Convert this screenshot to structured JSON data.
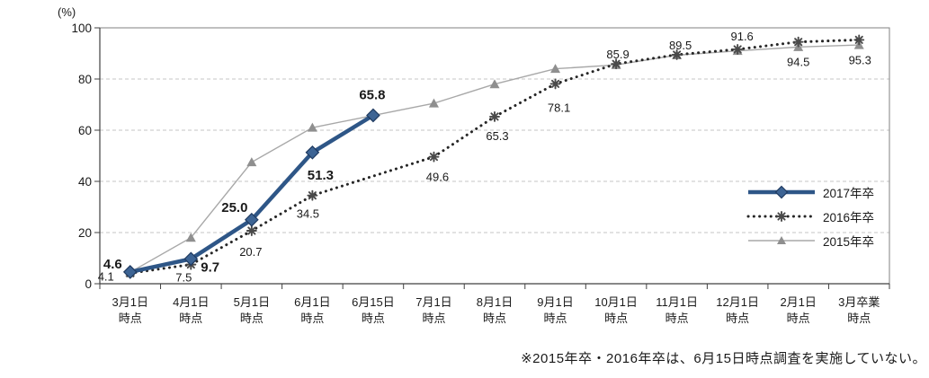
{
  "chart_data": {
    "type": "line",
    "unit_label": "(%)",
    "note": "※2015年卒・2016年卒は、6月15日時点調査を実施していない。",
    "categories": [
      "3月1日時点",
      "4月1日時点",
      "5月1日時点",
      "6月1日時点",
      "6月15日時点",
      "7月1日時点",
      "8月1日時点",
      "9月1日時点",
      "10月1日時点",
      "11月1日時点",
      "12月1日時点",
      "2月1日時点",
      "3月卒業時点"
    ],
    "y_axis": {
      "min": 0,
      "max": 100,
      "step": 20,
      "ticks": [
        "0",
        "20",
        "40",
        "60",
        "80",
        "100"
      ]
    },
    "grid": true,
    "legend_position": "inside-right",
    "series": [
      {
        "name": "2017年卒",
        "line_style": "solid-thick",
        "marker": "diamond",
        "color": "#2e5687",
        "marker_fill": "#3d6494",
        "marker_stroke": "#1f3a60",
        "values": [
          4.6,
          9.7,
          25.0,
          51.3,
          65.8,
          null,
          null,
          null,
          null,
          null,
          null,
          null,
          null
        ],
        "point_labels": [
          "4.6",
          "9.7",
          "25.0",
          "51.3",
          "65.8",
          null,
          null,
          null,
          null,
          null,
          null,
          null,
          null
        ],
        "labels_shown": true,
        "label_weight": "bold"
      },
      {
        "name": "2016年卒",
        "line_style": "dotted",
        "marker": "asterisk",
        "color": "#262626",
        "marker_fill": "#4a4a4a",
        "values": [
          4.1,
          7.5,
          20.7,
          34.5,
          null,
          49.6,
          65.3,
          78.1,
          85.9,
          89.5,
          91.6,
          94.5,
          95.3
        ],
        "point_labels": [
          "4.1",
          "7.5",
          "20.7",
          "34.5",
          null,
          "49.6",
          "65.3",
          "78.1",
          "85.9",
          "89.5",
          "91.6",
          "94.5",
          "95.3"
        ],
        "labels_shown": true,
        "label_weight": "normal"
      },
      {
        "name": "2015年卒",
        "line_style": "solid-thin",
        "marker": "triangle",
        "color": "#a8a8a8",
        "marker_fill": "#8f8f8f",
        "values": [
          4.5,
          18,
          47.5,
          61,
          null,
          70.5,
          78,
          84,
          85.5,
          89.3,
          91,
          92.5,
          93.3
        ],
        "values_estimated": true,
        "point_labels": [
          null,
          null,
          null,
          null,
          null,
          null,
          null,
          null,
          null,
          null,
          null,
          null,
          null
        ],
        "labels_shown": false
      }
    ],
    "colors": {
      "grid": "#c6c6c6",
      "axis": "#404040",
      "plot_border": "#808080",
      "text": "#1a1a1a"
    }
  }
}
